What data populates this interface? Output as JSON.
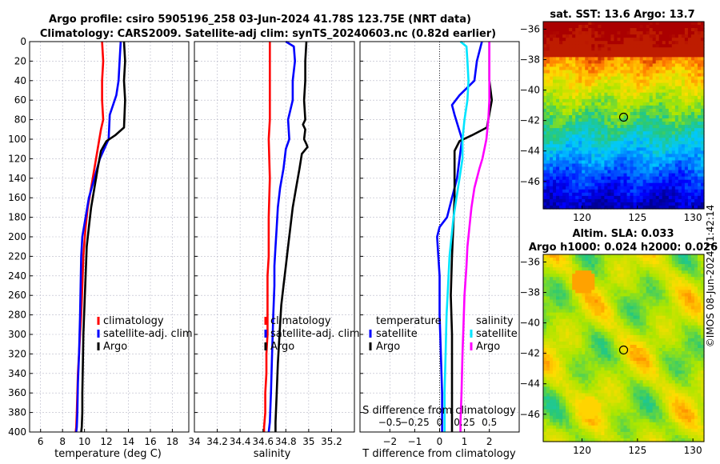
{
  "title": {
    "line1": "Argo profile: csiro 5905196_258 03-Jun-2024 41.78S 123.75E (NRT data)",
    "line2": "Climatology: CARS2009. Satellite-adj clim: synTS_20240603.nc (0.82d earlier)"
  },
  "colors": {
    "climatology": "#ff0000",
    "satellite": "#0000ff",
    "argo": "#000000",
    "sat_s": "#00e5ff",
    "argo_s": "#ff00ff",
    "grid": "#b8b8c8"
  },
  "chart_data": [
    {
      "id": "temperature",
      "type": "line",
      "xlabel": "temperature (deg C)",
      "ylabel": "",
      "xlim": [
        5,
        19.5
      ],
      "ylim": [
        400,
        0
      ],
      "xticks": [
        6,
        8,
        10,
        12,
        14,
        16,
        18
      ],
      "yticks": [
        0,
        20,
        40,
        60,
        80,
        100,
        120,
        140,
        160,
        180,
        200,
        220,
        240,
        260,
        280,
        300,
        320,
        340,
        360,
        380,
        400
      ],
      "legend": {
        "position": "right",
        "entries": [
          "climatology",
          "satellite-adj. clim",
          "Argo"
        ]
      },
      "series": [
        {
          "name": "climatology",
          "color_key": "climatology",
          "x": [
            11.6,
            11.7,
            11.6,
            11.6,
            11.7,
            11.5,
            11.2,
            10.9,
            10.6,
            10.3,
            10.1,
            9.9,
            9.8,
            9.7,
            9.6,
            9.5,
            9.4,
            9.35,
            9.3,
            9.25,
            9.2
          ],
          "y": [
            0,
            20,
            40,
            60,
            80,
            90,
            110,
            130,
            150,
            170,
            190,
            220,
            250,
            280,
            300,
            320,
            340,
            360,
            380,
            395,
            400
          ]
        },
        {
          "name": "satellite-adj. clim",
          "color_key": "satellite",
          "x": [
            13.3,
            13.2,
            13.1,
            12.9,
            12.6,
            12.3,
            12.2,
            11.4,
            10.9,
            10.4,
            10.1,
            9.8,
            9.7,
            9.65,
            9.6,
            9.5,
            9.4,
            9.35,
            9.3,
            9.25
          ],
          "y": [
            0,
            20,
            40,
            55,
            65,
            75,
            100,
            120,
            140,
            160,
            180,
            200,
            220,
            250,
            280,
            320,
            350,
            380,
            395,
            400
          ]
        },
        {
          "name": "Argo",
          "color_key": "argo",
          "x": [
            13.6,
            13.7,
            13.6,
            13.7,
            13.6,
            12.8,
            12.0,
            11.5,
            11.2,
            10.9,
            10.6,
            10.4,
            10.2,
            10.1,
            10.0,
            9.9,
            9.85,
            9.8,
            9.8,
            9.75,
            9.7
          ],
          "y": [
            0,
            20,
            40,
            60,
            88,
            96,
            102,
            112,
            130,
            150,
            170,
            190,
            210,
            240,
            270,
            300,
            330,
            360,
            380,
            395,
            400
          ]
        }
      ]
    },
    {
      "id": "salinity",
      "type": "line",
      "xlabel": "salinity",
      "ylabel": "",
      "xlim": [
        34,
        35.4
      ],
      "ylim": [
        400,
        0
      ],
      "xticks": [
        34,
        34.2,
        34.4,
        34.6,
        34.8,
        35,
        35.2
      ],
      "yticks": [
        0,
        20,
        40,
        60,
        80,
        100,
        120,
        140,
        160,
        180,
        200,
        220,
        240,
        260,
        280,
        300,
        320,
        340,
        360,
        380,
        400
      ],
      "legend": {
        "position": "right",
        "entries": [
          "climatology",
          "satellite-adj. clim",
          "Argo"
        ]
      },
      "series": [
        {
          "name": "climatology",
          "color_key": "climatology",
          "x": [
            34.66,
            34.66,
            34.66,
            34.65,
            34.66,
            34.65,
            34.65,
            34.64,
            34.64,
            34.64,
            34.63,
            34.63,
            34.62,
            34.62,
            34.61,
            34.61
          ],
          "y": [
            0,
            40,
            80,
            100,
            140,
            180,
            220,
            240,
            280,
            300,
            320,
            340,
            360,
            380,
            395,
            400
          ]
        },
        {
          "name": "satellite-adj. clim",
          "color_key": "satellite",
          "x": [
            34.8,
            34.87,
            34.88,
            34.86,
            34.86,
            34.84,
            34.82,
            34.83,
            34.8,
            34.78,
            34.75,
            34.73,
            34.72,
            34.71,
            34.7,
            34.7,
            34.69,
            34.68,
            34.67,
            34.66,
            34.65
          ],
          "y": [
            0,
            5,
            20,
            40,
            60,
            70,
            80,
            100,
            110,
            130,
            150,
            170,
            190,
            210,
            230,
            250,
            280,
            320,
            360,
            390,
            400
          ]
        },
        {
          "name": "Argo",
          "color_key": "argo",
          "x": [
            34.98,
            34.97,
            34.97,
            34.96,
            34.97,
            34.95,
            34.97,
            34.96,
            34.98,
            34.99,
            34.94,
            34.92,
            34.89,
            34.86,
            34.84,
            34.82,
            34.8,
            34.78,
            34.76,
            34.75,
            34.74,
            34.73,
            34.72,
            34.71,
            34.71
          ],
          "y": [
            0,
            20,
            40,
            60,
            80,
            85,
            90,
            100,
            105,
            108,
            115,
            130,
            150,
            170,
            190,
            210,
            230,
            250,
            270,
            290,
            310,
            330,
            360,
            390,
            400
          ]
        }
      ]
    },
    {
      "id": "difference",
      "type": "line",
      "xlabel": "T difference from climatology",
      "xlabel_top": "S difference from climatology",
      "ylabel": "",
      "xlim": [
        -3.2,
        3.2
      ],
      "ylim": [
        400,
        0
      ],
      "xticks": [
        -2,
        -1,
        0,
        1,
        2
      ],
      "xticks_s": [
        -0.5,
        -0.25,
        0,
        0.25,
        0.5
      ],
      "yticks": [
        0,
        20,
        40,
        60,
        80,
        100,
        120,
        140,
        160,
        180,
        200,
        220,
        240,
        260,
        280,
        300,
        320,
        340,
        360,
        380,
        400
      ],
      "legend_t": {
        "title": "temperature",
        "entries": [
          "satellite",
          "Argo"
        ]
      },
      "legend_s": {
        "title": "salinity",
        "entries": [
          "satellite",
          "Argo"
        ]
      },
      "series": [
        {
          "name": "temperature satellite",
          "color_key": "satellite",
          "x": [
            1.7,
            1.5,
            1.4,
            0.8,
            0.5,
            0.6,
            0.9,
            0.8,
            0.7,
            0.5,
            0.3,
            0.0,
            -0.1,
            -0.05,
            0.0,
            0.0,
            0.05,
            0.1,
            0.1,
            0.1
          ],
          "y": [
            0,
            20,
            40,
            55,
            65,
            75,
            100,
            120,
            140,
            160,
            180,
            190,
            200,
            220,
            240,
            280,
            320,
            360,
            390,
            400
          ]
        },
        {
          "name": "temperature Argo",
          "color_key": "argo",
          "x": [
            2.0,
            2.0,
            2.0,
            2.1,
            1.9,
            1.3,
            0.8,
            0.6,
            0.6,
            0.6,
            0.55,
            0.5,
            0.45,
            0.5,
            0.5,
            0.5,
            0.5
          ],
          "y": [
            0,
            20,
            40,
            60,
            88,
            96,
            102,
            112,
            130,
            160,
            190,
            220,
            260,
            300,
            340,
            380,
            400
          ]
        },
        {
          "name": "salinity satellite",
          "color_key": "sat_s",
          "x": [
            0.21,
            0.27,
            0.28,
            0.29,
            0.28,
            0.25,
            0.23,
            0.23,
            0.2,
            0.17,
            0.14,
            0.12,
            0.1,
            0.09,
            0.08,
            0.07,
            0.06,
            0.05,
            0.05,
            0.05
          ],
          "y": [
            0,
            5,
            20,
            40,
            60,
            80,
            100,
            120,
            140,
            160,
            180,
            200,
            220,
            240,
            260,
            280,
            320,
            360,
            390,
            400
          ]
        },
        {
          "name": "salinity Argo",
          "color_key": "argo_s",
          "x": [
            0.5,
            0.5,
            0.5,
            0.5,
            0.49,
            0.48,
            0.47,
            0.45,
            0.43,
            0.4,
            0.35,
            0.32,
            0.3,
            0.28,
            0.27,
            0.25,
            0.24,
            0.23,
            0.22,
            0.21,
            0.21
          ],
          "y": [
            0,
            20,
            40,
            60,
            80,
            90,
            100,
            110,
            120,
            130,
            150,
            170,
            190,
            210,
            230,
            260,
            290,
            320,
            360,
            390,
            400
          ]
        }
      ]
    },
    {
      "id": "sst_map",
      "type": "heatmap",
      "title": "sat. SST: 13.6 Argo: 13.7",
      "xlim": [
        116.5,
        131
      ],
      "ylim": [
        -47.8,
        -35.5
      ],
      "xticks": [
        120,
        125,
        130
      ],
      "yticks": [
        -36,
        -38,
        -40,
        -42,
        -44,
        -46
      ],
      "marker": {
        "lon": 123.75,
        "lat": -41.78
      }
    },
    {
      "id": "sla_map",
      "type": "heatmap",
      "title": "Altim. SLA: 0.033",
      "subtitle": "Argo h1000: 0.024 h2000: 0.026",
      "xlim": [
        116.5,
        131
      ],
      "ylim": [
        -47.8,
        -35.5
      ],
      "xticks": [
        120,
        125,
        130
      ],
      "yticks": [
        -36,
        -38,
        -40,
        -42,
        -44,
        -46
      ],
      "marker": {
        "lon": 123.75,
        "lat": -41.78
      }
    }
  ],
  "stamp": "©IMOS 08-Jun-2024 11:42:14"
}
